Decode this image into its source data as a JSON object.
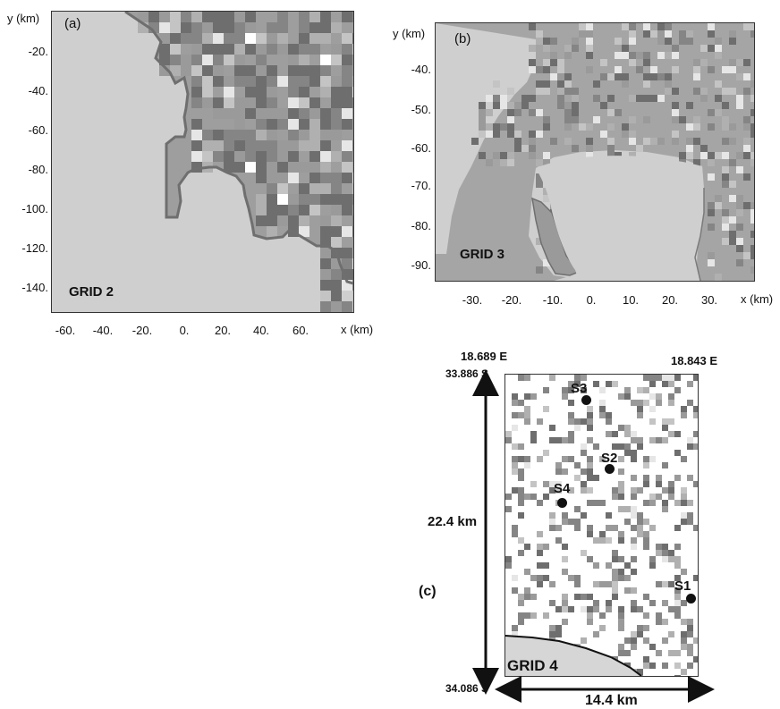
{
  "panel_a": {
    "label": "(a)",
    "grid_label": "GRID 2",
    "y_axis_label": "y (km)",
    "x_axis_label": "x (km)",
    "y_ticks": [
      "-20.",
      "-40.",
      "-60.",
      "-80.",
      "-100.",
      "-120.",
      "-140."
    ],
    "x_ticks": [
      "-60.",
      "-40.",
      "-20.",
      "0.",
      "20.",
      "40.",
      "60."
    ]
  },
  "panel_b": {
    "label": "(b)",
    "grid_label": "GRID 3",
    "y_axis_label": "y (km)",
    "x_axis_label": "x (km)",
    "y_ticks": [
      "-40.",
      "-50.",
      "-60.",
      "-70.",
      "-80.",
      "-90."
    ],
    "x_ticks": [
      "-30.",
      "-20.",
      "-10.",
      "0.",
      "10.",
      "20.",
      "30."
    ]
  },
  "panel_c": {
    "label": "(c)",
    "grid_label": "GRID 4",
    "lon_left": "18.689 E",
    "lon_right": "18.843 E",
    "lat_top": "33.886 S",
    "lat_bottom": "34.086 S",
    "height_label": "22.4 km",
    "width_label": "14.4 km",
    "stations": [
      {
        "name": "S3"
      },
      {
        "name": "S2"
      },
      {
        "name": "S4"
      },
      {
        "name": "S1"
      }
    ]
  },
  "colors": {
    "sea": "#cfcfcf",
    "land_dark": "#6e6e6e",
    "land_mid": "#9a9a9a",
    "land_light": "#bdbdbd",
    "coast_line": "#707070",
    "urban": "#ffffff"
  }
}
